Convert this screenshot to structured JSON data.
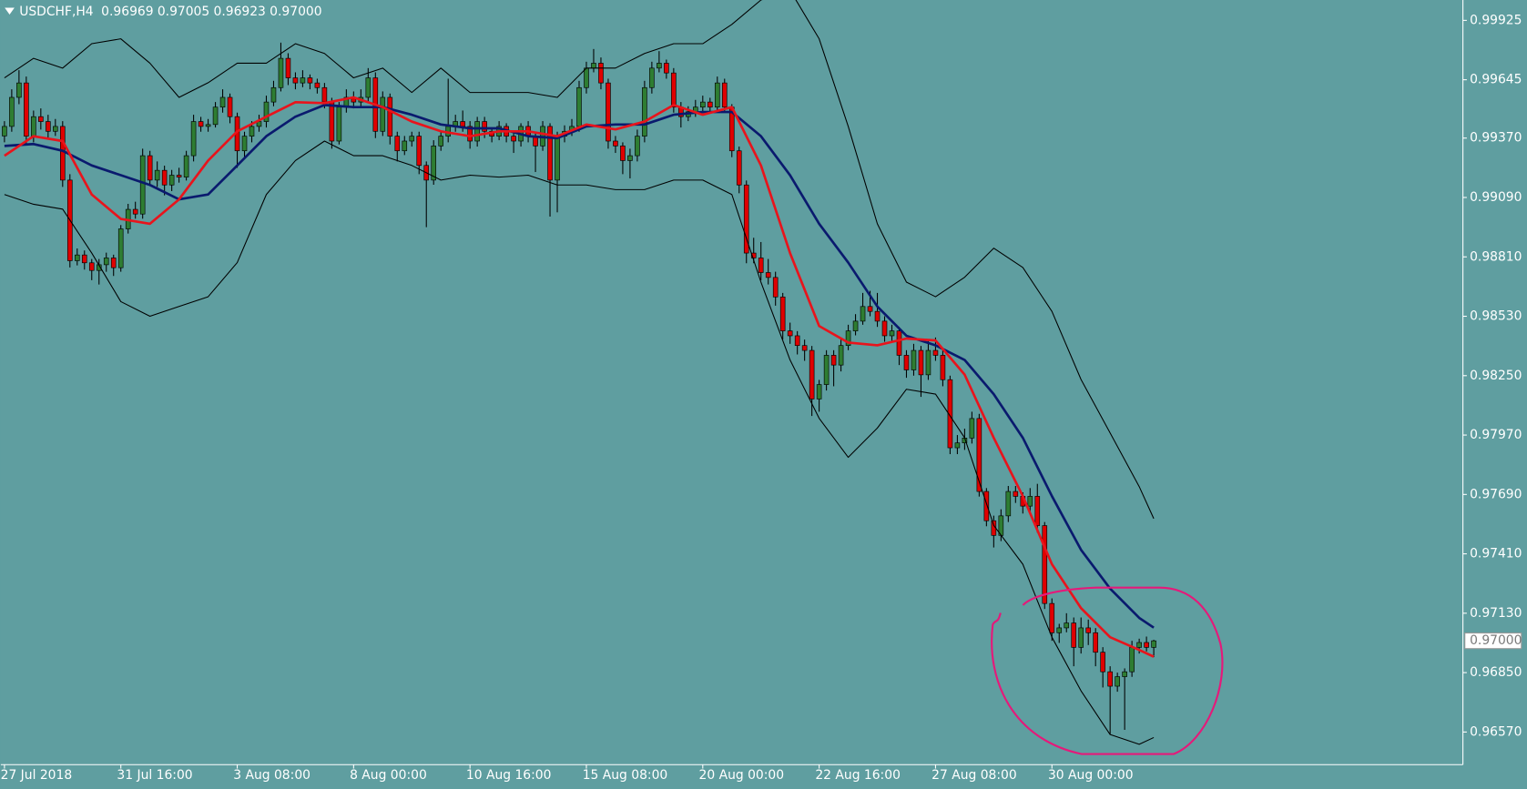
{
  "chart_data": {
    "type": "candlestick",
    "symbol": "USDCHF,H4",
    "readout": [
      "0.96969",
      "0.97005",
      "0.96923",
      "0.97000"
    ],
    "bull_color": "#2e7d32",
    "bear_color": "#e00000",
    "wick_color": "#000000",
    "xlim": [
      -0.5,
      200.5
    ],
    "xticks": [
      {
        "value": 0,
        "label": "27 Jul 2018"
      },
      {
        "value": 16,
        "label": "31 Jul 16:00"
      },
      {
        "value": 32,
        "label": "3 Aug 08:00"
      },
      {
        "value": 48,
        "label": "8 Aug 00:00"
      },
      {
        "value": 64,
        "label": "10 Aug 16:00"
      },
      {
        "value": 80,
        "label": "15 Aug 08:00"
      },
      {
        "value": 96,
        "label": "20 Aug 00:00"
      },
      {
        "value": 112,
        "label": "22 Aug 16:00"
      },
      {
        "value": 128,
        "label": "27 Aug 08:00"
      },
      {
        "value": 144,
        "label": "30 Aug 00:00"
      }
    ],
    "ylim": [
      0.96416,
      1.00021
    ],
    "yticks": [
      0.99925,
      0.99645,
      {
        "value": 0.9937,
        "label": "0.99370"
      },
      {
        "value": 0.9909,
        "label": "0.99090"
      },
      {
        "value": 0.9881,
        "label": "0.98810"
      },
      {
        "value": 0.9853,
        "label": "0.98530"
      },
      {
        "value": 0.9825,
        "label": "0.98250"
      },
      {
        "value": 0.9797,
        "label": "0.97970"
      },
      {
        "value": 0.9769,
        "label": "0.97690"
      },
      {
        "value": 0.9741,
        "label": "0.97410"
      },
      {
        "value": 0.9713,
        "label": "0.97130"
      },
      {
        "value": 0.9685,
        "label": "0.96850"
      },
      {
        "value": 0.9657,
        "label": "0.96570"
      }
    ],
    "current_price": {
      "value": 0.97,
      "label": "0.97000"
    },
    "candles": [
      [
        0.9938,
        0.9945,
        0.9935,
        0.99425
      ],
      [
        0.99425,
        0.996,
        0.994,
        0.99562
      ],
      [
        0.99562,
        0.9969,
        0.9953,
        0.9963
      ],
      [
        0.9963,
        0.9966,
        0.9934,
        0.99379
      ],
      [
        0.99379,
        0.995,
        0.9935,
        0.99471
      ],
      [
        0.99471,
        0.9951,
        0.9941,
        0.99448
      ],
      [
        0.99448,
        0.9948,
        0.9937,
        0.99402
      ],
      [
        0.99402,
        0.9946,
        0.9938,
        0.99425
      ],
      [
        0.99425,
        0.9945,
        0.9914,
        0.99172
      ],
      [
        0.99172,
        0.992,
        0.9876,
        0.98792
      ],
      [
        0.98792,
        0.9885,
        0.9877,
        0.98819
      ],
      [
        0.98819,
        0.9884,
        0.9875,
        0.98782
      ],
      [
        0.98782,
        0.988,
        0.987,
        0.98746
      ],
      [
        0.98746,
        0.988,
        0.9868,
        0.98773
      ],
      [
        0.98773,
        0.9883,
        0.9874,
        0.98805
      ],
      [
        0.98805,
        0.9882,
        0.9872,
        0.98759
      ],
      [
        0.98759,
        0.9896,
        0.9874,
        0.98942
      ],
      [
        0.98942,
        0.9906,
        0.9892,
        0.99034
      ],
      [
        0.99034,
        0.9907,
        0.9899,
        0.99012
      ],
      [
        0.99012,
        0.9932,
        0.9899,
        0.99287
      ],
      [
        0.99287,
        0.9931,
        0.9915,
        0.99172
      ],
      [
        0.99172,
        0.9926,
        0.9914,
        0.99218
      ],
      [
        0.99218,
        0.9924,
        0.991,
        0.99149
      ],
      [
        0.99149,
        0.9922,
        0.9912,
        0.99195
      ],
      [
        0.99195,
        0.9923,
        0.9916,
        0.99186
      ],
      [
        0.99186,
        0.9931,
        0.9917,
        0.99287
      ],
      [
        0.99287,
        0.9948,
        0.9926,
        0.99448
      ],
      [
        0.99448,
        0.9947,
        0.994,
        0.99425
      ],
      [
        0.99425,
        0.9946,
        0.994,
        0.99434
      ],
      [
        0.99434,
        0.9954,
        0.9942,
        0.99516
      ],
      [
        0.99516,
        0.996,
        0.9949,
        0.99562
      ],
      [
        0.99562,
        0.9958,
        0.9944,
        0.99471
      ],
      [
        0.99471,
        0.9949,
        0.9923,
        0.9931
      ],
      [
        0.9931,
        0.994,
        0.9928,
        0.99379
      ],
      [
        0.99379,
        0.9945,
        0.9935,
        0.99425
      ],
      [
        0.99425,
        0.9948,
        0.994,
        0.99448
      ],
      [
        0.99448,
        0.9957,
        0.9942,
        0.9954
      ],
      [
        0.9954,
        0.9964,
        0.9952,
        0.99608
      ],
      [
        0.99608,
        0.9982,
        0.9959,
        0.99746
      ],
      [
        0.99746,
        0.9977,
        0.9962,
        0.99654
      ],
      [
        0.99654,
        0.9968,
        0.996,
        0.9963
      ],
      [
        0.9963,
        0.9969,
        0.9961,
        0.99654
      ],
      [
        0.99654,
        0.9967,
        0.996,
        0.9963
      ],
      [
        0.9963,
        0.9965,
        0.9958,
        0.99608
      ],
      [
        0.99608,
        0.9963,
        0.9951,
        0.9954
      ],
      [
        0.9954,
        0.9956,
        0.9932,
        0.99356
      ],
      [
        0.99356,
        0.9954,
        0.9934,
        0.99516
      ],
      [
        0.99516,
        0.996,
        0.9949,
        0.99562
      ],
      [
        0.99562,
        0.9959,
        0.9951,
        0.9954
      ],
      [
        0.9954,
        0.996,
        0.9952,
        0.99562
      ],
      [
        0.99562,
        0.997,
        0.9954,
        0.99654
      ],
      [
        0.99654,
        0.9968,
        0.9937,
        0.99402
      ],
      [
        0.99402,
        0.9959,
        0.9938,
        0.99562
      ],
      [
        0.99562,
        0.9958,
        0.9934,
        0.99379
      ],
      [
        0.99379,
        0.994,
        0.9926,
        0.9931
      ],
      [
        0.9931,
        0.9938,
        0.9929,
        0.99356
      ],
      [
        0.99356,
        0.994,
        0.9933,
        0.99379
      ],
      [
        0.99379,
        0.994,
        0.992,
        0.99241
      ],
      [
        0.99241,
        0.9926,
        0.9895,
        0.99172
      ],
      [
        0.99172,
        0.9936,
        0.9915,
        0.99333
      ],
      [
        0.99333,
        0.994,
        0.9931,
        0.99379
      ],
      [
        0.99379,
        0.9965,
        0.9935,
        0.99425
      ],
      [
        0.99425,
        0.9948,
        0.994,
        0.99448
      ],
      [
        0.99448,
        0.995,
        0.994,
        0.99425
      ],
      [
        0.99425,
        0.9945,
        0.9932,
        0.99356
      ],
      [
        0.99356,
        0.9947,
        0.9933,
        0.99448
      ],
      [
        0.99448,
        0.9947,
        0.9937,
        0.99402
      ],
      [
        0.99402,
        0.9942,
        0.9935,
        0.99379
      ],
      [
        0.99379,
        0.9945,
        0.9936,
        0.99425
      ],
      [
        0.99425,
        0.9944,
        0.9935,
        0.99379
      ],
      [
        0.99379,
        0.994,
        0.993,
        0.99356
      ],
      [
        0.99356,
        0.9944,
        0.9933,
        0.99425
      ],
      [
        0.99425,
        0.9945,
        0.9935,
        0.99379
      ],
      [
        0.99379,
        0.994,
        0.9921,
        0.99333
      ],
      [
        0.99333,
        0.9945,
        0.9931,
        0.99425
      ],
      [
        0.99425,
        0.9944,
        0.99,
        0.99172
      ],
      [
        0.99172,
        0.994,
        0.9902,
        0.99379
      ],
      [
        0.99379,
        0.9943,
        0.9935,
        0.99402
      ],
      [
        0.99402,
        0.9946,
        0.9938,
        0.99425
      ],
      [
        0.99425,
        0.9964,
        0.994,
        0.99608
      ],
      [
        0.99608,
        0.9973,
        0.9958,
        0.997
      ],
      [
        0.997,
        0.9979,
        0.9968,
        0.99723
      ],
      [
        0.99723,
        0.9975,
        0.996,
        0.9963
      ],
      [
        0.9963,
        0.9965,
        0.9932,
        0.99356
      ],
      [
        0.99356,
        0.9938,
        0.993,
        0.99333
      ],
      [
        0.99333,
        0.9935,
        0.992,
        0.99264
      ],
      [
        0.99264,
        0.9932,
        0.9918,
        0.99287
      ],
      [
        0.99287,
        0.9941,
        0.9926,
        0.99379
      ],
      [
        0.99379,
        0.9964,
        0.9935,
        0.99608
      ],
      [
        0.99608,
        0.9973,
        0.9958,
        0.997
      ],
      [
        0.997,
        0.9978,
        0.9968,
        0.99723
      ],
      [
        0.99723,
        0.9974,
        0.9965,
        0.99677
      ],
      [
        0.99677,
        0.997,
        0.9949,
        0.99516
      ],
      [
        0.99516,
        0.9954,
        0.9942,
        0.99471
      ],
      [
        0.99471,
        0.9952,
        0.9945,
        0.99494
      ],
      [
        0.99494,
        0.9955,
        0.9947,
        0.99516
      ],
      [
        0.99516,
        0.9957,
        0.9949,
        0.9954
      ],
      [
        0.9954,
        0.9956,
        0.9949,
        0.99516
      ],
      [
        0.99516,
        0.9966,
        0.995,
        0.9963
      ],
      [
        0.9963,
        0.9965,
        0.9949,
        0.99516
      ],
      [
        0.99516,
        0.9953,
        0.9928,
        0.9931
      ],
      [
        0.9931,
        0.9933,
        0.9911,
        0.99149
      ],
      [
        0.99149,
        0.9917,
        0.9878,
        0.98828
      ],
      [
        0.98828,
        0.989,
        0.9878,
        0.98805
      ],
      [
        0.98805,
        0.9888,
        0.987,
        0.98736
      ],
      [
        0.98736,
        0.988,
        0.9868,
        0.98713
      ],
      [
        0.98713,
        0.9874,
        0.9858,
        0.98621
      ],
      [
        0.98621,
        0.9864,
        0.9842,
        0.98461
      ],
      [
        0.98461,
        0.985,
        0.984,
        0.98438
      ],
      [
        0.98438,
        0.9846,
        0.9835,
        0.98392
      ],
      [
        0.98392,
        0.9842,
        0.9832,
        0.98369
      ],
      [
        0.98369,
        0.9839,
        0.9806,
        0.9814
      ],
      [
        0.9814,
        0.9823,
        0.9808,
        0.98208
      ],
      [
        0.98208,
        0.9837,
        0.9818,
        0.98346
      ],
      [
        0.98346,
        0.9837,
        0.982,
        0.983
      ],
      [
        0.983,
        0.9842,
        0.9827,
        0.98392
      ],
      [
        0.98392,
        0.9849,
        0.9837,
        0.98461
      ],
      [
        0.98461,
        0.9854,
        0.9844,
        0.98507
      ],
      [
        0.98507,
        0.9864,
        0.9849,
        0.98576
      ],
      [
        0.98576,
        0.9865,
        0.9853,
        0.98553
      ],
      [
        0.98553,
        0.9864,
        0.9848,
        0.98507
      ],
      [
        0.98507,
        0.9853,
        0.9841,
        0.98438
      ],
      [
        0.98438,
        0.9849,
        0.9841,
        0.98461
      ],
      [
        0.98461,
        0.9848,
        0.983,
        0.98346
      ],
      [
        0.98346,
        0.9837,
        0.9824,
        0.98277
      ],
      [
        0.98277,
        0.984,
        0.9825,
        0.98369
      ],
      [
        0.98369,
        0.9839,
        0.9815,
        0.98254
      ],
      [
        0.98254,
        0.9842,
        0.9823,
        0.98369
      ],
      [
        0.98369,
        0.9843,
        0.9832,
        0.98346
      ],
      [
        0.98346,
        0.9837,
        0.982,
        0.98231
      ],
      [
        0.98231,
        0.9825,
        0.9788,
        0.9791
      ],
      [
        0.9791,
        0.9797,
        0.9788,
        0.97933
      ],
      [
        0.97933,
        0.98,
        0.979,
        0.97956
      ],
      [
        0.97956,
        0.9808,
        0.9793,
        0.98048
      ],
      [
        0.98048,
        0.9807,
        0.9768,
        0.97704
      ],
      [
        0.97704,
        0.9772,
        0.9754,
        0.97566
      ],
      [
        0.97566,
        0.9759,
        0.9744,
        0.97497
      ],
      [
        0.97497,
        0.9762,
        0.9747,
        0.97589
      ],
      [
        0.97589,
        0.9773,
        0.9756,
        0.97704
      ],
      [
        0.97704,
        0.9773,
        0.9765,
        0.97681
      ],
      [
        0.97681,
        0.977,
        0.976,
        0.97635
      ],
      [
        0.97635,
        0.9772,
        0.9761,
        0.97681
      ],
      [
        0.97681,
        0.9774,
        0.9751,
        0.97543
      ],
      [
        0.97543,
        0.9756,
        0.9715,
        0.97176
      ],
      [
        0.97176,
        0.972,
        0.97,
        0.97038
      ],
      [
        0.97038,
        0.9708,
        0.9699,
        0.97061
      ],
      [
        0.97061,
        0.9713,
        0.9704,
        0.97084
      ],
      [
        0.97084,
        0.9711,
        0.9688,
        0.96969
      ],
      [
        0.96969,
        0.9711,
        0.9694,
        0.97061
      ],
      [
        0.97061,
        0.971,
        0.9698,
        0.97038
      ],
      [
        0.97038,
        0.9706,
        0.9688,
        0.96946
      ],
      [
        0.96946,
        0.9697,
        0.9678,
        0.96854
      ],
      [
        0.96854,
        0.9688,
        0.9656,
        0.96786
      ],
      [
        0.96786,
        0.9685,
        0.9676,
        0.96831
      ],
      [
        0.96831,
        0.9687,
        0.9658,
        0.96854
      ],
      [
        0.96854,
        0.97,
        0.9683,
        0.96969
      ],
      [
        0.96969,
        0.9701,
        0.9694,
        0.96992
      ],
      [
        0.96992,
        0.9702,
        0.9695,
        0.96969
      ],
      [
        0.96969,
        0.97005,
        0.96923,
        0.97
      ]
    ],
    "line_x": [
      0,
      4,
      8,
      12,
      16,
      20,
      24,
      28,
      32,
      36,
      40,
      44,
      48,
      52,
      56,
      60,
      64,
      68,
      72,
      76,
      80,
      84,
      88,
      92,
      96,
      100,
      104,
      108,
      112,
      116,
      120,
      124,
      128,
      132,
      136,
      140,
      144,
      148,
      152,
      156,
      158
    ],
    "lines": [
      {
        "color": "#000000",
        "width": 1,
        "values": [
          0.99654,
          0.99746,
          0.997,
          0.99815,
          0.99838,
          0.99723,
          0.99562,
          0.99631,
          0.99723,
          0.99723,
          0.99815,
          0.99769,
          0.99654,
          0.997,
          0.99585,
          0.997,
          0.99585,
          0.99585,
          0.99585,
          0.99562,
          0.997,
          0.997,
          0.99769,
          0.99815,
          0.99815,
          0.99906,
          1.00021,
          1.00067,
          0.99838,
          0.99425,
          0.98966,
          0.98691,
          0.98622,
          0.98714,
          0.98851,
          0.9876,
          0.98553,
          0.98232,
          0.9798,
          0.97727,
          0.97576
        ]
      },
      {
        "color": "#000000",
        "width": 1,
        "values": [
          0.99104,
          0.99058,
          0.99035,
          0.98828,
          0.98599,
          0.9853,
          0.98576,
          0.98622,
          0.98783,
          0.99104,
          0.99264,
          0.99356,
          0.99287,
          0.99287,
          0.99241,
          0.99172,
          0.99195,
          0.99186,
          0.99195,
          0.99149,
          0.99149,
          0.99127,
          0.99127,
          0.99172,
          0.99172,
          0.99104,
          0.98691,
          0.98324,
          0.98049,
          0.97865,
          0.98003,
          0.98186,
          0.98163,
          0.97957,
          0.97544,
          0.97361,
          0.97017,
          0.96764,
          0.96558,
          0.96512,
          0.96544
        ]
      },
      {
        "color": "#0a1a6e",
        "width": 2.5,
        "values": [
          0.99333,
          0.99342,
          0.9931,
          0.99241,
          0.99195,
          0.99149,
          0.99081,
          0.99104,
          0.99241,
          0.99379,
          0.99471,
          0.99526,
          0.99516,
          0.99516,
          0.9948,
          0.99434,
          0.99416,
          0.99416,
          0.99379,
          0.9937,
          0.99425,
          0.99434,
          0.99434,
          0.9948,
          0.99493,
          0.99493,
          0.99379,
          0.99195,
          0.98966,
          0.98783,
          0.98576,
          0.98438,
          0.98393,
          0.98324,
          0.98163,
          0.97957,
          0.97682,
          0.97429,
          0.97246,
          0.97108,
          0.97062
        ]
      },
      {
        "color": "#e8141c",
        "width": 2.5,
        "values": [
          0.99287,
          0.99379,
          0.99356,
          0.99104,
          0.98989,
          0.98966,
          0.99081,
          0.99264,
          0.99402,
          0.99471,
          0.99539,
          0.99535,
          0.99562,
          0.99516,
          0.99448,
          0.99402,
          0.99379,
          0.99402,
          0.99402,
          0.99379,
          0.99434,
          0.99411,
          0.99448,
          0.99526,
          0.9948,
          0.99516,
          0.99241,
          0.98828,
          0.98484,
          0.98406,
          0.98393,
          0.98425,
          0.98416,
          0.98255,
          0.97957,
          0.97682,
          0.97361,
          0.97154,
          0.97017,
          0.96957,
          0.96925
        ]
      }
    ]
  }
}
